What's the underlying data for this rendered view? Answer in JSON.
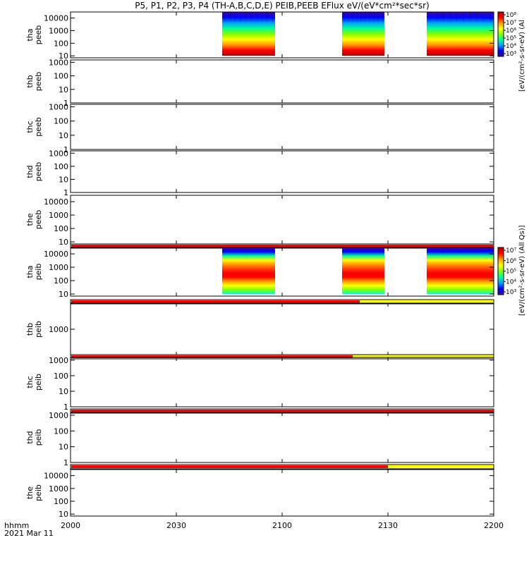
{
  "title": "P5, P1, P2, P3, P4 (TH-A,B,C,D,E) PEIB,PEEB EFlux eV/(eV*cm²*sec*sr)",
  "colorbar_units_label": "[eV/(cm²-s-sr-eV) (All Qs)]",
  "colorbar_units_label_top": "[eV/(cm²-s-sr-eV) (Al",
  "colormap": [
    "#3b0ba0",
    "#0000ff",
    "#00a0ff",
    "#00ff9a",
    "#7fff00",
    "#ffff00",
    "#ff9900",
    "#ff0000",
    "#b00000"
  ],
  "flag_colors": {
    "red": "#ff0000",
    "yellow": "#ffff00"
  },
  "xaxis": {
    "label_line1": "hhmm",
    "label_line2": "2021 Mar 11",
    "ticks": [
      "2000",
      "2030",
      "2100",
      "2130",
      "2200"
    ],
    "range_minutes": [
      0,
      120
    ]
  },
  "chart_data": {
    "type": "heatmap",
    "x_range_hhmm": [
      "2000",
      "2200"
    ],
    "panels": [
      {
        "probe": "tha",
        "product": "peeb",
        "ylabel": "tha\npeeb",
        "yticks": [
          "10",
          "100",
          "1000",
          "10000"
        ],
        "ylim": [
          7,
          30000
        ],
        "has_data": true,
        "intervals_min": [
          [
            43,
            58
          ],
          [
            77,
            89
          ],
          [
            101,
            120
          ]
        ],
        "colorbar_ticks": [
          "10⁸",
          "10⁷",
          "10⁶",
          "10⁵",
          "10⁴",
          "10³"
        ]
      },
      {
        "probe": "thb",
        "product": "peeb",
        "ylabel": "thb\npeeb",
        "yticks": [
          "1",
          "10",
          "100",
          "1000"
        ],
        "ylim": [
          1,
          1500
        ],
        "has_data": false
      },
      {
        "probe": "thc",
        "product": "peeb",
        "ylabel": "thc\npeeb",
        "yticks": [
          "1",
          "10",
          "100",
          "1000"
        ],
        "ylim": [
          1,
          1500
        ],
        "has_data": false
      },
      {
        "probe": "thd",
        "product": "peeb",
        "ylabel": "thd\npeeb",
        "yticks": [
          "1",
          "10",
          "100",
          "1000"
        ],
        "ylim": [
          1,
          1500
        ],
        "has_data": false
      },
      {
        "probe": "the",
        "product": "peeb",
        "ylabel": "the\npeeb",
        "yticks": [
          "10",
          "100",
          "1000",
          "10000"
        ],
        "ylim": [
          7,
          30000
        ],
        "has_data": false,
        "flag_bar": {
          "red_until_min": 120
        }
      },
      {
        "probe": "tha",
        "product": "peib",
        "ylabel": "tha\npeib",
        "yticks": [
          "10",
          "100",
          "1000",
          "10000"
        ],
        "ylim": [
          7,
          30000
        ],
        "has_data": true,
        "intervals_min": [
          [
            43,
            58
          ],
          [
            77,
            89
          ],
          [
            101,
            120
          ]
        ],
        "colorbar_ticks": [
          "10⁷",
          "10⁶",
          "10⁵",
          "10⁴",
          "10³"
        ],
        "flag_bar": {
          "red_until_min": 82,
          "rest": "yellow"
        }
      },
      {
        "probe": "thb",
        "product": "peib",
        "ylabel": "thb\npeib",
        "yticks": [
          "1000"
        ],
        "ylim": [
          200,
          5000
        ],
        "has_data": false,
        "flag_bar": {
          "red_until_min": 80,
          "rest": "yellow"
        }
      },
      {
        "probe": "thc",
        "product": "peib",
        "ylabel": "thc\npeib",
        "yticks": [
          "1",
          "10",
          "100",
          "1000"
        ],
        "ylim": [
          1,
          1500
        ],
        "has_data": false,
        "flag_bar": {
          "red_until_min": 120
        }
      },
      {
        "probe": "thd",
        "product": "peib",
        "ylabel": "thd\npeib",
        "yticks": [
          "1",
          "10",
          "100",
          "1000"
        ],
        "ylim": [
          1,
          1500
        ],
        "has_data": false,
        "flag_bar": {
          "red_until_min": 90,
          "rest": "yellow"
        }
      },
      {
        "probe": "the",
        "product": "peib",
        "ylabel": "the\npeib",
        "yticks": [
          "10",
          "100",
          "1000",
          "10000"
        ],
        "ylim": [
          7,
          30000
        ],
        "has_data": false
      }
    ]
  }
}
